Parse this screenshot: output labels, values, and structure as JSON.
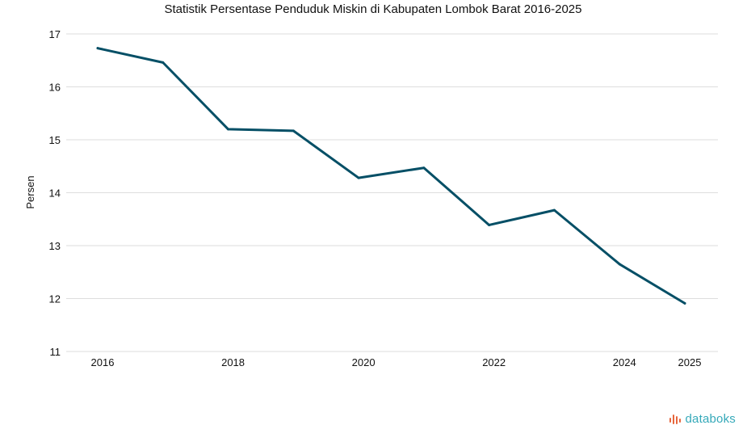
{
  "brand": {
    "name": "databoks",
    "color": "#35a9b9",
    "mark_color": "#e7663c"
  },
  "chart_data": {
    "type": "line",
    "title": "Statistik Persentase Penduduk Miskin di Kabupaten Lombok Barat 2016-2025",
    "xlabel": "",
    "ylabel": "Persen",
    "x": [
      2016,
      2017,
      2018,
      2019,
      2020,
      2021,
      2022,
      2023,
      2024,
      2025
    ],
    "x_tick_labels": [
      "2016",
      "2018",
      "2020",
      "2022",
      "2024",
      "2025"
    ],
    "x_tick_values": [
      2016,
      2018,
      2020,
      2022,
      2024,
      2025
    ],
    "y_ticks": [
      11,
      12,
      13,
      14,
      15,
      16,
      17
    ],
    "ylim": [
      11,
      17
    ],
    "grid": true,
    "legend": "none",
    "series": [
      {
        "values": [
          16.73,
          16.46,
          15.2,
          15.17,
          14.28,
          14.47,
          13.39,
          13.67,
          12.65,
          11.91
        ],
        "color": "#054f66"
      }
    ]
  }
}
